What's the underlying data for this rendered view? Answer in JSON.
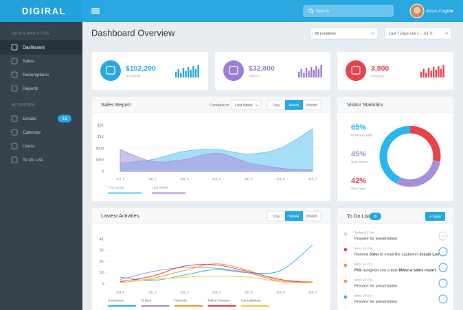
{
  "header": {
    "logo": "DIGIRAL",
    "search_placeholder": "Search",
    "user_name": "Jesus Cagide"
  },
  "sidebar": {
    "sections": [
      {
        "title": "DATA & ANALYTICS",
        "items": [
          {
            "label": "Dashboard",
            "active": true
          },
          {
            "label": "Sales"
          },
          {
            "label": "Redemptions"
          },
          {
            "label": "Reports"
          }
        ]
      },
      {
        "title": "ACTIVITIES",
        "items": [
          {
            "label": "Emails",
            "badge": "15"
          },
          {
            "label": "Calendar"
          },
          {
            "label": "Users"
          },
          {
            "label": "To Do List"
          }
        ]
      }
    ]
  },
  "page": {
    "title": "Dashboard Overview",
    "filters": [
      "All Locations",
      "Last 7 Days (Jul 1 – Jul 7)"
    ]
  },
  "kpis": [
    {
      "value": "$102,200",
      "label": "REVENUE",
      "color": "#29a8e0"
    },
    {
      "value": "$32,800",
      "label": "PROFIT",
      "color": "#9b7fd0"
    },
    {
      "value": "3,800",
      "label": "ORDERS",
      "color": "#e8424a"
    }
  ],
  "sales_report": {
    "title": "Sales Report",
    "compare_label": "Compare to",
    "compare_select": "Last Week",
    "tabs": [
      "Day",
      "Week",
      "Month"
    ],
    "active_tab": 1,
    "chart": {
      "type": "area",
      "categories": [
        "JUL 1",
        "JUL 2",
        "JUL 3",
        "JUL 4",
        "JUL 5",
        "JUL 6",
        "JUL 7"
      ],
      "yticks": [
        0,
        {
          "value": 250,
          "label": "$250"
        },
        {
          "value": 500,
          "label": "$500"
        },
        {
          "value": 1000,
          "label": "$1K"
        },
        {
          "value": 2000,
          "label": "$2K"
        }
      ],
      "ylim": [
        0,
        2000
      ],
      "grid": true,
      "series": [
        {
          "name": "This Week",
          "color": "#5cc3f2",
          "values": [
            180,
            260,
            440,
            480,
            380,
            520,
            1700
          ]
        },
        {
          "name": "Last Week",
          "color": "#a88fd8",
          "values": [
            480,
            220,
            260,
            400,
            190,
            70,
            30
          ]
        }
      ]
    }
  },
  "visitor_statistics": {
    "title": "Visitor Statistics",
    "chart": {
      "type": "donut",
      "labels": [
        "Returning Visits",
        "New Visitors",
        "Click Rate"
      ],
      "values": [
        65,
        45,
        42
      ],
      "value_labels": [
        "65%",
        "45%",
        "42%"
      ],
      "colors": [
        "#29b6f0",
        "#a88fd8",
        "#e8424a"
      ]
    }
  },
  "activities": {
    "title": "Lastest Activities",
    "tabs": [
      "Day",
      "Week",
      "Month"
    ],
    "active_tab": 1,
    "chart": {
      "type": "line",
      "categories": [
        "JUL 1",
        "JUL 2",
        "JUL 3",
        "JUL 4",
        "JUL 5",
        "JUL 6",
        "JUL 7"
      ],
      "yticks": [
        0,
        {
          "value": 1000,
          "label": "1K"
        },
        {
          "value": 2000,
          "label": "2K"
        },
        {
          "value": 3000,
          "label": "3K"
        },
        {
          "value": 4000,
          "label": "4K"
        }
      ],
      "ylim": [
        0,
        4000
      ],
      "series": [
        {
          "name": "Customers",
          "color": "#29b6f0",
          "values": [
            600,
            300,
            800,
            1300,
            1000,
            1200,
            3500
          ]
        },
        {
          "name": "Orders",
          "color": "#a88fd8",
          "values": [
            400,
            1100,
            1500,
            1400,
            1000,
            200,
            100
          ]
        },
        {
          "name": "Refunds",
          "color": "#f29a2e",
          "values": [
            100,
            500,
            1200,
            1800,
            1200,
            300,
            200
          ]
        },
        {
          "name": "Failed Charges",
          "color": "#e8424a",
          "values": [
            200,
            700,
            1600,
            1700,
            1100,
            400,
            100
          ]
        },
        {
          "name": "Cancellations",
          "color": "#f5c94a",
          "values": [
            300,
            400,
            600,
            700,
            600,
            200,
            100
          ]
        }
      ]
    }
  },
  "todo": {
    "title": "To Do List",
    "count": "6",
    "button": "+ New",
    "items": [
      {
        "date": "Today-23 Oct",
        "color": "#cfd5da",
        "done": true,
        "text": [
          {
            "t": "Prepare for presentation"
          }
        ]
      },
      {
        "date": "Mon, 24 Oct",
        "color": "#e8424a",
        "text": [
          {
            "t": "Remind "
          },
          {
            "t": "John",
            "b": true
          },
          {
            "t": " to email the customer "
          },
          {
            "t": "Jessie Lee",
            "b": true
          }
        ]
      },
      {
        "date": "Mon, 24 Oct",
        "color": "#f29a2e",
        "text": [
          {
            "t": "Pek",
            "b": true
          },
          {
            "t": " assigned you a task "
          },
          {
            "t": "Make a sales report",
            "b": true
          }
        ]
      },
      {
        "date": "Mon, 24 Oct",
        "color": "#f29a2e",
        "text": [
          {
            "t": "Prepare for presentation"
          }
        ]
      },
      {
        "date": "Mon, 24 Oct",
        "color": "#29b6f0",
        "text": [
          {
            "t": "Prepare for presentation"
          }
        ]
      }
    ]
  }
}
